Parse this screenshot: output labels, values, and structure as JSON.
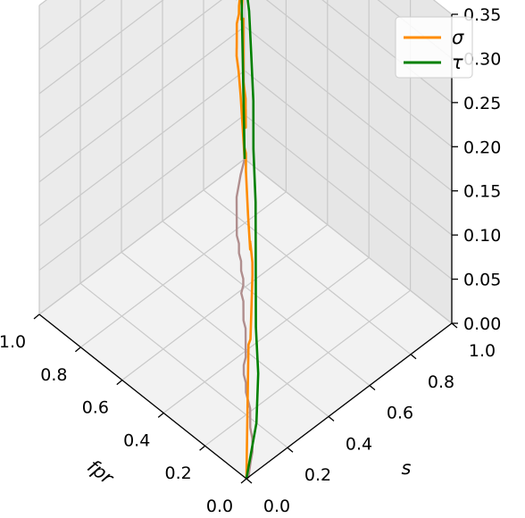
{
  "chart_data": {
    "type": "line3d",
    "title": "",
    "xlabel": "fpr",
    "ylabel": "s",
    "zlabel": "",
    "xlim": [
      0,
      1
    ],
    "ylim": [
      0,
      1
    ],
    "zlim": [
      0,
      0.35
    ],
    "x_ticks": [
      "0.0",
      "0.2",
      "0.4",
      "0.6",
      "0.8",
      "1.0"
    ],
    "y_ticks": [
      "0.0",
      "0.2",
      "0.4",
      "0.6",
      "0.8",
      "1.0"
    ],
    "z_ticks": [
      "0.00",
      "0.05",
      "0.10",
      "0.15",
      "0.20",
      "0.25",
      "0.30",
      "0.35"
    ],
    "grid": true,
    "legend_position": "top-right",
    "series": [
      {
        "name": "σ",
        "color": "#ff8c00",
        "shadow_color": "#b08e8e",
        "points": [
          [
            0.0,
            0.0,
            0.0
          ],
          [
            0.0,
            0.01,
            0.15
          ],
          [
            0.04,
            0.06,
            0.14
          ],
          [
            0.07,
            0.1,
            0.2
          ],
          [
            0.11,
            0.14,
            0.2
          ],
          [
            0.15,
            0.17,
            0.21
          ],
          [
            0.18,
            0.2,
            0.2
          ],
          [
            0.21,
            0.23,
            0.18
          ],
          [
            0.24,
            0.25,
            0.21
          ],
          [
            0.27,
            0.27,
            0.25
          ],
          [
            0.3,
            0.3,
            0.26
          ],
          [
            0.33,
            0.32,
            0.26
          ],
          [
            0.36,
            0.35,
            0.28
          ],
          [
            0.38,
            0.38,
            0.26
          ],
          [
            0.41,
            0.41,
            0.27
          ],
          [
            0.44,
            0.44,
            0.24
          ],
          [
            0.47,
            0.47,
            0.26
          ],
          [
            0.5,
            0.49,
            0.27
          ],
          [
            0.53,
            0.52,
            0.3
          ],
          [
            0.56,
            0.55,
            0.32
          ],
          [
            0.59,
            0.57,
            0.31
          ],
          [
            0.61,
            0.6,
            0.34
          ],
          [
            0.63,
            0.62,
            0.32
          ],
          [
            0.66,
            0.64,
            0.33
          ],
          [
            0.69,
            0.67,
            0.31
          ],
          [
            0.72,
            0.69,
            0.28
          ],
          [
            0.75,
            0.72,
            0.26
          ],
          [
            0.78,
            0.74,
            0.24
          ],
          [
            0.81,
            0.77,
            0.21
          ],
          [
            0.84,
            0.8,
            0.19
          ],
          [
            0.87,
            0.83,
            0.18
          ],
          [
            0.9,
            0.86,
            0.16
          ],
          [
            0.93,
            0.9,
            0.13
          ],
          [
            0.96,
            0.94,
            0.09
          ],
          [
            1.0,
            1.0,
            0.0
          ]
        ]
      },
      {
        "name": "τ",
        "color": "#008000",
        "points": [
          [
            0.0,
            0.0,
            0.0
          ],
          [
            0.15,
            0.2,
            0.0
          ],
          [
            0.3,
            0.36,
            0.0
          ],
          [
            0.45,
            0.5,
            0.0
          ],
          [
            0.55,
            0.6,
            0.05
          ],
          [
            0.62,
            0.67,
            0.08
          ],
          [
            0.68,
            0.72,
            0.12
          ],
          [
            0.72,
            0.76,
            0.16
          ],
          [
            0.76,
            0.79,
            0.2
          ],
          [
            0.79,
            0.81,
            0.24
          ],
          [
            0.82,
            0.83,
            0.25
          ],
          [
            0.85,
            0.85,
            0.27
          ],
          [
            0.88,
            0.86,
            0.25
          ],
          [
            0.9,
            0.88,
            0.26
          ],
          [
            0.92,
            0.89,
            0.24
          ],
          [
            0.94,
            0.9,
            0.21
          ],
          [
            0.95,
            0.91,
            0.28
          ],
          [
            0.96,
            0.92,
            0.23
          ],
          [
            0.97,
            0.93,
            0.26
          ],
          [
            0.98,
            0.94,
            0.2
          ],
          [
            0.99,
            0.96,
            0.22
          ],
          [
            1.0,
            0.98,
            0.25
          ],
          [
            1.0,
            1.0,
            0.0
          ]
        ]
      }
    ]
  }
}
